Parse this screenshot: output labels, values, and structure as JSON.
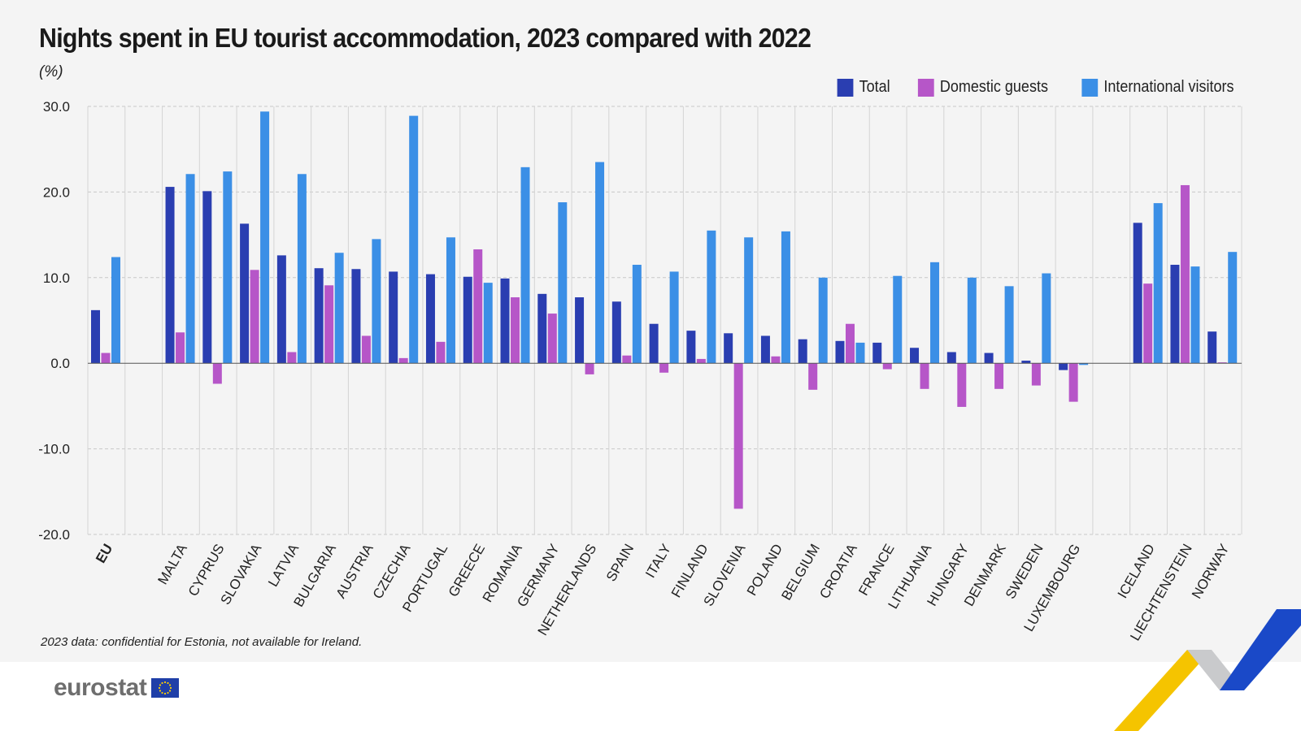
{
  "title": "Nights spent in EU tourist accommodation, 2023 compared with 2022",
  "unit": "(%)",
  "note": "2023 data: confidential for Estonia, not available for Ireland.",
  "logo": "eurostat",
  "colors": {
    "Total": "#2a3eb1",
    "Domestic guests": "#b656c8",
    "International visitors": "#3b8fe6",
    "background": "#f4f4f4"
  },
  "chart_data": {
    "type": "bar",
    "title": "Nights spent in EU tourist accommodation, 2023 compared with 2022",
    "ylabel": "(%)",
    "ylim": [
      -20,
      30
    ],
    "yticks": [
      "30.0",
      "20.0",
      "10.0",
      "0.0",
      "-10.0",
      "-20.0"
    ],
    "grid": true,
    "legend_position": "top-right",
    "groups": [
      [
        "EU"
      ],
      [
        "MALTA",
        "CYPRUS",
        "SLOVAKIA",
        "LATVIA",
        "BULGARIA",
        "AUSTRIA",
        "CZECHIA",
        "PORTUGAL",
        "GREECE",
        "ROMANIA",
        "GERMANY",
        "NETHERLANDS",
        "SPAIN",
        "ITALY",
        "FINLAND",
        "SLOVENIA",
        "POLAND",
        "BELGIUM",
        "CROATIA",
        "FRANCE",
        "LITHUANIA",
        "HUNGARY",
        "DENMARK",
        "SWEDEN",
        "LUXEMBOURG"
      ],
      [
        "ICELAND",
        "LIECHTENSTEIN",
        "NORWAY"
      ]
    ],
    "categories": [
      "EU",
      "MALTA",
      "CYPRUS",
      "SLOVAKIA",
      "LATVIA",
      "BULGARIA",
      "AUSTRIA",
      "CZECHIA",
      "PORTUGAL",
      "GREECE",
      "ROMANIA",
      "GERMANY",
      "NETHERLANDS",
      "SPAIN",
      "ITALY",
      "FINLAND",
      "SLOVENIA",
      "POLAND",
      "BELGIUM",
      "CROATIA",
      "FRANCE",
      "LITHUANIA",
      "HUNGARY",
      "DENMARK",
      "SWEDEN",
      "LUXEMBOURG",
      "ICELAND",
      "LIECHTENSTEIN",
      "NORWAY"
    ],
    "series": [
      {
        "name": "Total",
        "values": [
          6.2,
          20.6,
          20.1,
          16.3,
          12.6,
          11.1,
          11.0,
          10.7,
          10.4,
          10.1,
          9.9,
          8.1,
          7.7,
          7.2,
          4.6,
          3.8,
          3.5,
          3.2,
          2.8,
          2.6,
          2.4,
          1.8,
          1.3,
          1.2,
          0.3,
          -0.8,
          16.4,
          11.5,
          3.7
        ]
      },
      {
        "name": "Domestic guests",
        "values": [
          1.2,
          3.6,
          -2.4,
          10.9,
          1.3,
          9.1,
          3.2,
          0.6,
          2.5,
          13.3,
          7.7,
          5.8,
          -1.3,
          0.9,
          -1.1,
          0.5,
          -17.0,
          0.8,
          -3.1,
          4.6,
          -0.7,
          -3.0,
          -5.1,
          -3.0,
          -2.6,
          -4.5,
          9.3,
          20.8,
          0.1
        ]
      },
      {
        "name": "International visitors",
        "values": [
          12.4,
          22.1,
          22.4,
          29.4,
          22.1,
          12.9,
          14.5,
          28.9,
          14.7,
          9.4,
          22.9,
          18.8,
          23.5,
          11.5,
          10.7,
          15.5,
          14.7,
          15.4,
          10.0,
          2.4,
          10.2,
          11.8,
          10.0,
          9.0,
          10.5,
          -0.2,
          18.7,
          11.3,
          13.0
        ]
      }
    ]
  }
}
